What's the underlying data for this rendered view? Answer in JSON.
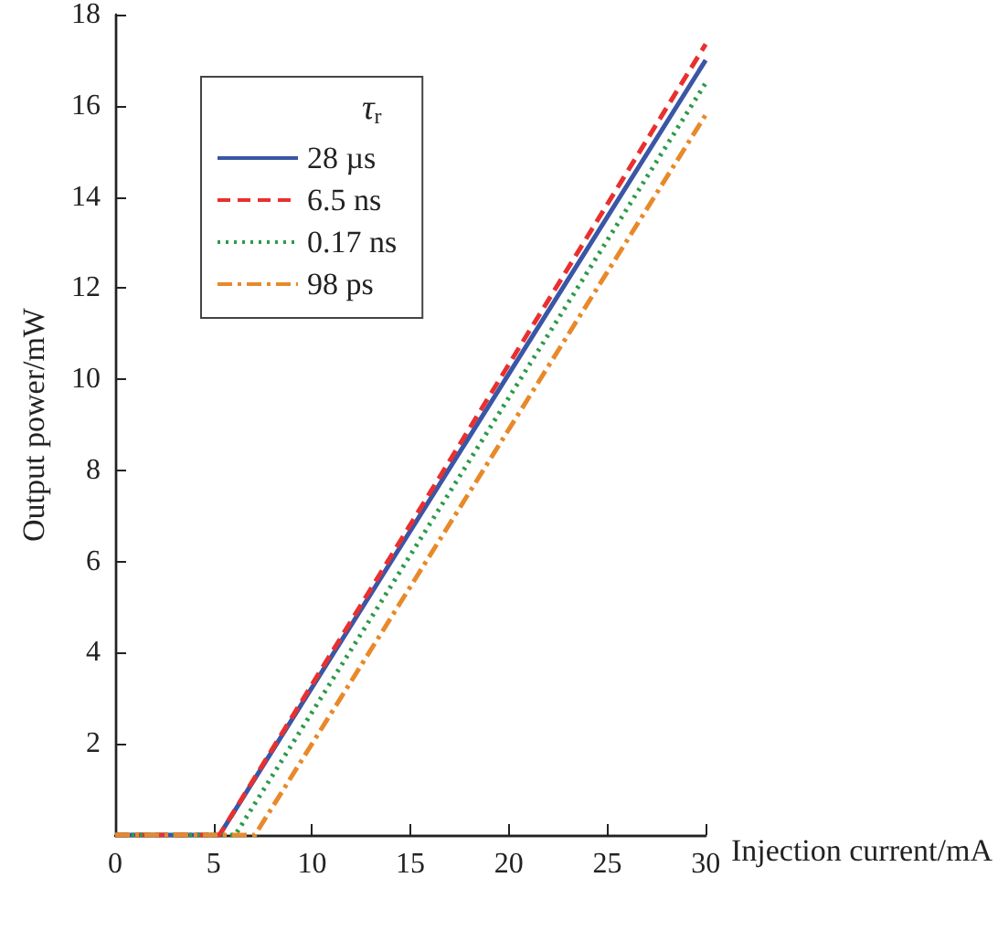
{
  "chart_data": {
    "type": "line",
    "xlabel": "Injection current/mA",
    "ylabel": "Output power/mW",
    "legend_title": "τ$_{r}$",
    "series": [
      {
        "name": "28 µs",
        "color": "#3a56a6",
        "line_style": "solid",
        "x": [
          0,
          5.3,
          30
        ],
        "values": [
          0,
          0,
          17.0
        ]
      },
      {
        "name": "6.5 ns",
        "color": "#e8312f",
        "line_style": "dashed",
        "x": [
          0,
          5.3,
          30
        ],
        "values": [
          0,
          0,
          17.35
        ]
      },
      {
        "name": "0.17 ns",
        "color": "#2e9a4a",
        "line_style": "dotted",
        "x": [
          0,
          6.1,
          30
        ],
        "values": [
          0,
          0,
          16.5
        ]
      },
      {
        "name": "98 ps",
        "color": "#e8892a",
        "line_style": "dashdot",
        "x": [
          0,
          7.1,
          30
        ],
        "values": [
          0,
          0,
          15.8
        ]
      }
    ],
    "xlim": [
      0,
      30
    ],
    "xticks": [
      0,
      5,
      10,
      15,
      20,
      25,
      30
    ],
    "ylim": [
      0,
      18
    ],
    "yticks": [
      2,
      4,
      6,
      8,
      10,
      12,
      14,
      16,
      18
    ],
    "grid": false,
    "legend": "top left",
    "marker": "none"
  }
}
